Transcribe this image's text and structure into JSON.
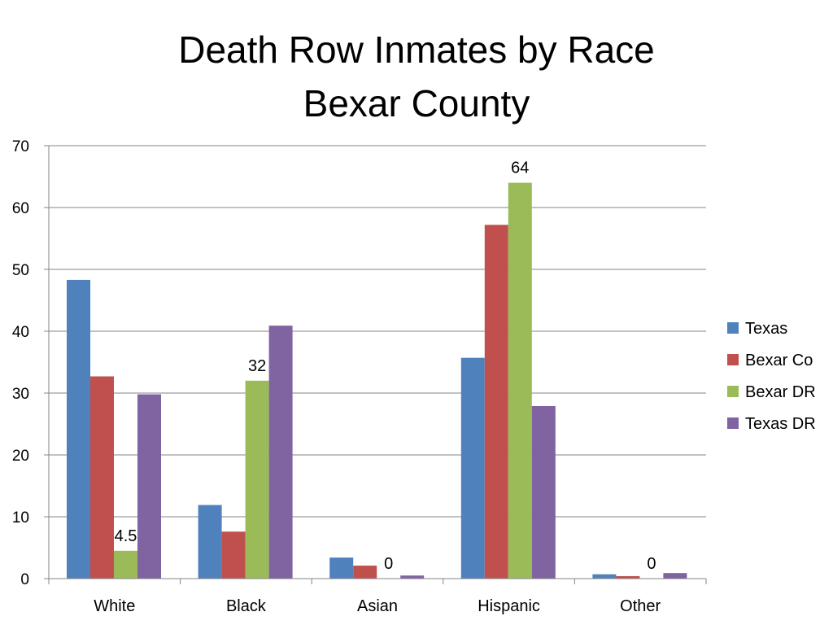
{
  "chart_data": {
    "type": "bar",
    "title_lines": [
      "Death Row Inmates by Race",
      "Bexar County"
    ],
    "xlabel": "",
    "ylabel": "",
    "categories": [
      "White",
      "Black",
      "Asian",
      "Hispanic",
      "Other"
    ],
    "series": [
      {
        "name": "Texas",
        "color": "#4F81BD",
        "values": [
          48.3,
          11.9,
          3.4,
          35.7,
          0.7
        ]
      },
      {
        "name": "Bexar Co",
        "color": "#C0504D",
        "values": [
          32.7,
          7.6,
          2.1,
          57.2,
          0.4
        ]
      },
      {
        "name": "Bexar DR",
        "color": "#9BBB59",
        "values": [
          4.5,
          32,
          0,
          64,
          0
        ]
      },
      {
        "name": "Texas DR",
        "color": "#8064A2",
        "values": [
          29.8,
          40.9,
          0.5,
          27.9,
          0.9
        ]
      }
    ],
    "data_labels": [
      {
        "series": "Bexar DR",
        "category": "White",
        "text": "4.5"
      },
      {
        "series": "Bexar DR",
        "category": "Black",
        "text": "32"
      },
      {
        "series": "Bexar DR",
        "category": "Asian",
        "text": "0"
      },
      {
        "series": "Bexar DR",
        "category": "Hispanic",
        "text": "64"
      },
      {
        "series": "Bexar DR",
        "category": "Other",
        "text": "0"
      }
    ],
    "ylim": [
      0,
      70
    ],
    "yticks": [
      0,
      10,
      20,
      30,
      40,
      50,
      60,
      70
    ],
    "grid": true,
    "grid_color": "#868686",
    "legend_position": "right"
  }
}
